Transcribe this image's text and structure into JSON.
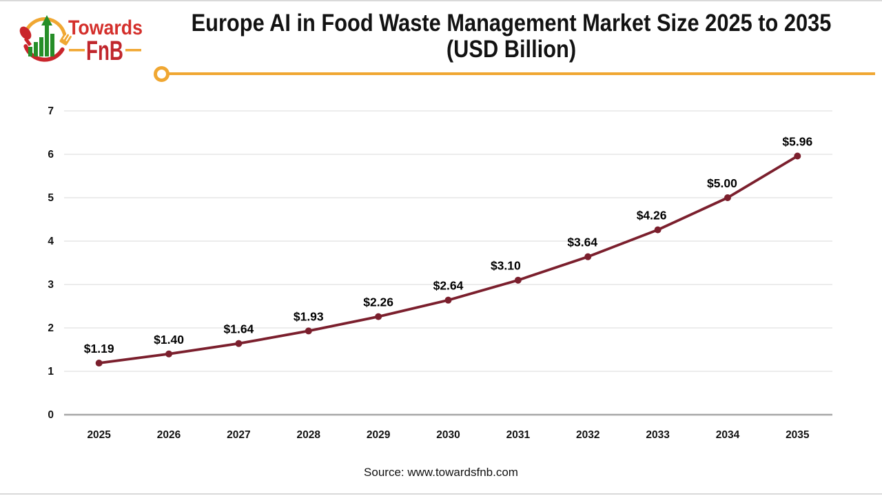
{
  "logo": {
    "line1": "Towards",
    "line2": "FnB",
    "colors": {
      "red": "#d42f2b",
      "dark_red": "#c0262c",
      "gold": "#f0a732",
      "green": "#268e28"
    }
  },
  "title_line1": "Europe AI in Food Waste Management Market Size 2025 to 2035",
  "title_line2": "(USD Billion)",
  "divider_color": "#f0a732",
  "chart_data": {
    "type": "line",
    "title": "Europe AI in Food Waste Management Market Size 2025 to 2035 (USD Billion)",
    "categories": [
      "2025",
      "2026",
      "2027",
      "2028",
      "2029",
      "2030",
      "2031",
      "2032",
      "2033",
      "2034",
      "2035"
    ],
    "values": [
      1.19,
      1.4,
      1.64,
      1.93,
      2.26,
      2.64,
      3.1,
      3.64,
      4.26,
      5.0,
      5.96
    ],
    "point_labels": [
      "$1.19",
      "$1.40",
      "$1.64",
      "$1.93",
      "$2.26",
      "$2.64",
      "$3.10",
      "$3.64",
      "$4.26",
      "$5.00",
      "$5.96"
    ],
    "ylim": [
      0,
      7
    ],
    "ytick_step": 1,
    "grid": true,
    "legend": "none",
    "line_color": "#7b1f2d",
    "gridline_color": "#d9d9d9",
    "axis_line_color": "#a6a6a6",
    "label_dx": [
      0,
      0,
      0,
      0,
      0,
      0,
      -18,
      -8,
      -9,
      -8,
      0
    ]
  },
  "source": "Source: www.towardsfnb.com"
}
